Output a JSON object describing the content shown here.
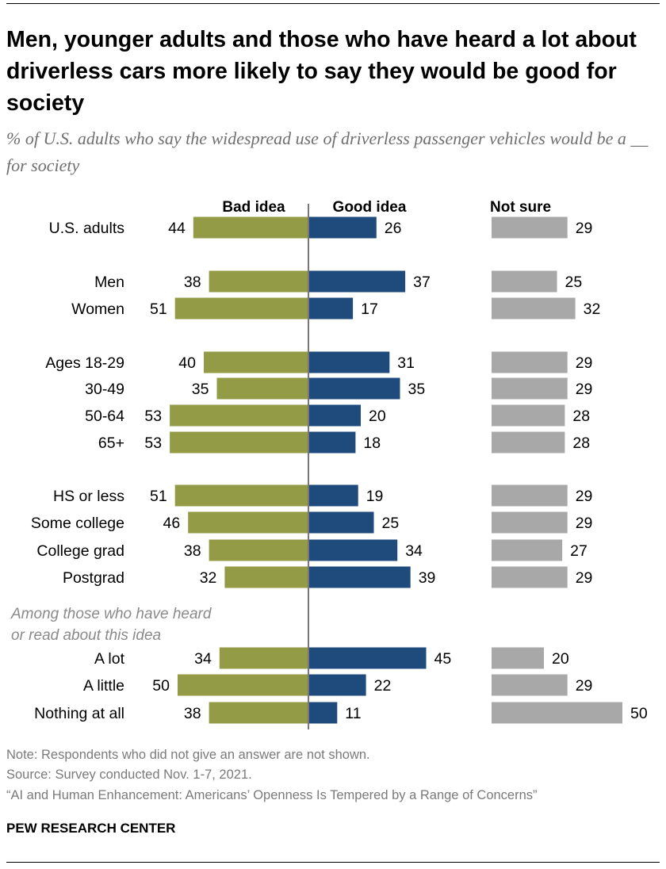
{
  "title": "Men, younger adults and those who have heard a lot about driverless cars more likely to say they would be good for society",
  "subtitle": "% of U.S. adults who say the widespread use of driverless passenger vehicles would be a __ for society",
  "notes": {
    "note": "Note: Respondents who did not give an answer are not shown.",
    "source": "Source: Survey conducted Nov. 1-7, 2021.",
    "report": "“AI and Human Enhancement: Americans’ Openness Is Tempered by a Range of Concerns”"
  },
  "brand": "PEW RESEARCH CENTER",
  "colors": {
    "bad": "#939b47",
    "good": "#1f4a7c",
    "unsure": "#a8a8a8",
    "axis": "#777777",
    "annotation": "#8a8a8a"
  },
  "chart_data": {
    "type": "bar",
    "orientation": "horizontal",
    "title": "Men, younger adults and those who have heard a lot about driverless cars more likely to say they would be good for society",
    "annotation": [
      "Among those who have heard",
      "or read about this idea"
    ],
    "categories": [
      "U.S. adults",
      "Men",
      "Women",
      "Ages 18-29",
      "30-49",
      "50-64",
      "65+",
      "HS or less",
      "Some college",
      "College grad",
      "Postgrad",
      "A lot",
      "A little",
      "Nothing at all"
    ],
    "groups": [
      [
        "U.S. adults"
      ],
      [
        "Men",
        "Women"
      ],
      [
        "Ages 18-29",
        "30-49",
        "50-64",
        "65+"
      ],
      [
        "HS or less",
        "Some college",
        "College grad",
        "Postgrad"
      ],
      [
        "A lot",
        "A little",
        "Nothing at all"
      ]
    ],
    "series": [
      {
        "name": "Bad idea",
        "values": [
          44,
          38,
          51,
          40,
          35,
          53,
          53,
          51,
          46,
          38,
          32,
          34,
          50,
          38
        ]
      },
      {
        "name": "Good idea",
        "values": [
          26,
          37,
          17,
          31,
          35,
          20,
          18,
          19,
          25,
          34,
          39,
          45,
          22,
          11
        ]
      },
      {
        "name": "Not sure",
        "values": [
          29,
          25,
          32,
          29,
          29,
          28,
          28,
          29,
          29,
          27,
          29,
          20,
          29,
          50
        ]
      }
    ],
    "xlabel": "",
    "ylabel": "",
    "xlim": [
      0,
      100
    ]
  }
}
